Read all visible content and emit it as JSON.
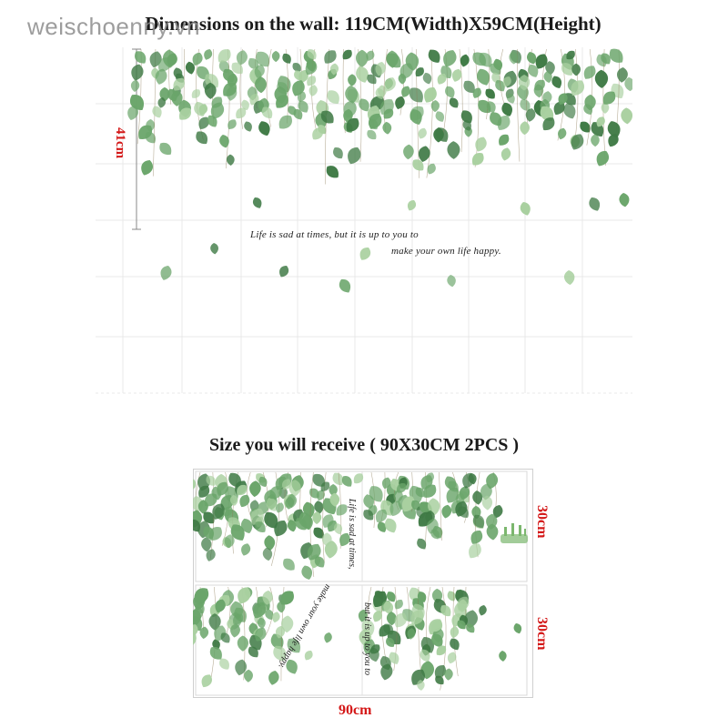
{
  "watermark": "weischoenny.vn",
  "title": "Dimensions on the wall: 119CM(Width)X59CM(Height)",
  "wall": {
    "height_label": "41cm",
    "quote_line1": "Life is sad at times, but it is up to you to",
    "quote_line2": "make your own life happy."
  },
  "receive": {
    "title": "Size you will receive ( 90X30CM 2PCS )",
    "height_label_top": "30cm",
    "height_label_bottom": "30cm",
    "width_label": "90cm",
    "panel1_text": "Life is sad at times,",
    "panel2_text_left": "make your own life happy.",
    "panel2_text_right": "but it is up to you to"
  },
  "colors": {
    "leaf_dark": "#3f7a45",
    "leaf_mid": "#6aa56a",
    "leaf_light": "#a9d0a0",
    "dimension_red": "#d41818"
  }
}
